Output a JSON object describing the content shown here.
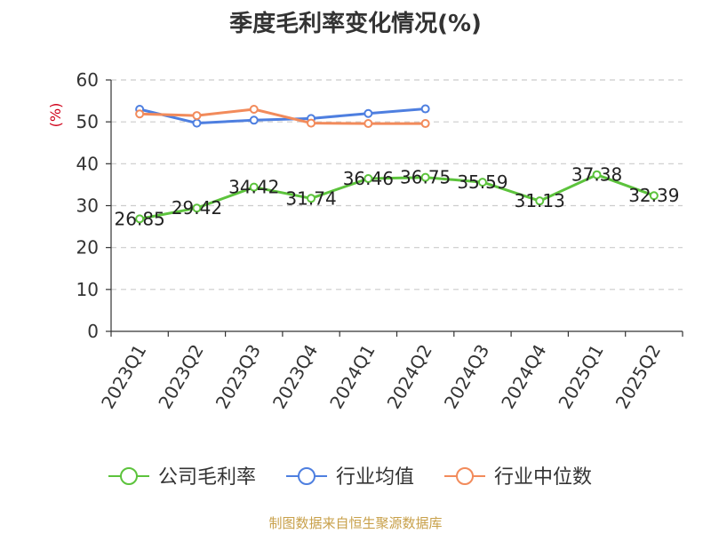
{
  "chart_data": {
    "type": "line",
    "title": "季度毛利率变化情况(%)",
    "ylabel": "(%)",
    "ylim": [
      0,
      60
    ],
    "yticks": [
      0,
      10,
      20,
      30,
      40,
      50,
      60
    ],
    "categories": [
      "2023Q1",
      "2023Q2",
      "2023Q3",
      "2023Q4",
      "2024Q1",
      "2024Q2",
      "2024Q3",
      "2024Q4",
      "2025Q1",
      "2025Q2"
    ],
    "grid": true,
    "legend_position": "bottom",
    "series": [
      {
        "name": "公司毛利率",
        "color": "#5cc33c",
        "show_labels": true,
        "values": [
          26.85,
          29.42,
          34.42,
          31.74,
          36.46,
          36.75,
          35.59,
          31.13,
          37.38,
          32.39
        ]
      },
      {
        "name": "行业均值",
        "color": "#4e7fe0",
        "show_labels": false,
        "values": [
          53.0,
          49.7,
          50.4,
          50.8,
          52.0,
          53.1,
          null,
          null,
          null,
          null
        ]
      },
      {
        "name": "行业中位数",
        "color": "#f28b5b",
        "show_labels": false,
        "values": [
          51.9,
          51.5,
          53.0,
          49.7,
          49.6,
          49.6,
          null,
          null,
          null,
          null
        ]
      }
    ]
  },
  "source": "制图数据来自恒生聚源数据库"
}
